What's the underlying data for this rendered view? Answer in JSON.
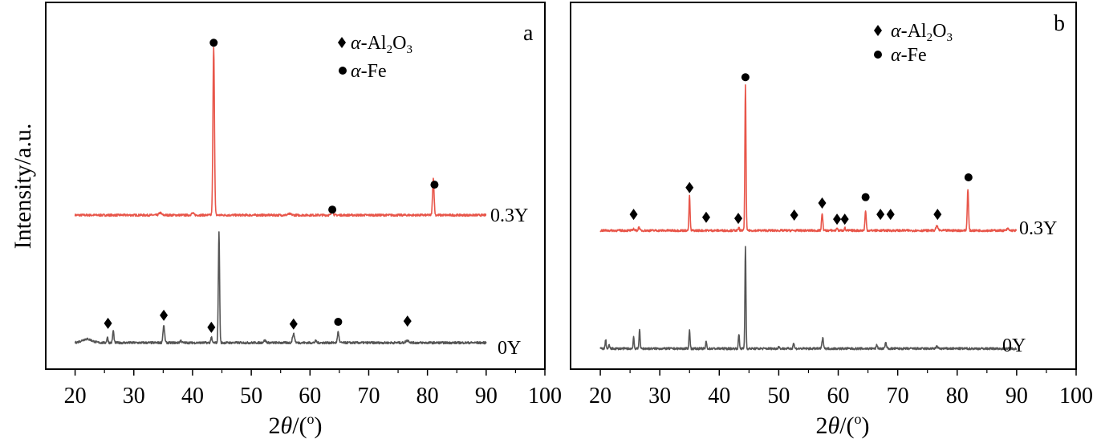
{
  "chart_data": [
    {
      "type": "line",
      "panel_label": "a",
      "xlabel": {
        "pre": "2",
        "theta": "θ",
        "mid": "/(",
        "sup": "o",
        "post": ")"
      },
      "ylabel": "Intensity/a.u.",
      "xlim": [
        15,
        100
      ],
      "ylim": [
        0,
        100
      ],
      "xticks": [
        20,
        30,
        40,
        50,
        60,
        70,
        80,
        90,
        100
      ],
      "grid": false,
      "legend": {
        "placement": "top-center",
        "al2o3": {
          "greek": "α",
          "a": "-Al",
          "s1": "2",
          "b": "O",
          "s2": "3"
        },
        "fe": {
          "greek": "α",
          "a": "-Fe"
        }
      },
      "series": [
        {
          "name": "0.3Y",
          "color": "#e8564a",
          "baseline": 42,
          "peaks": [
            [
              43.6,
              46,
              0.18
            ],
            [
              63.8,
              1.4,
              0.2
            ],
            [
              81.0,
              10,
              0.18
            ],
            [
              34.5,
              0.6,
              0.3
            ],
            [
              40.0,
              0.5,
              0.3
            ],
            [
              56.5,
              0.3,
              0.4
            ]
          ],
          "markers": [
            {
              "type": "circle",
              "x": 43.6,
              "y": 89
            },
            {
              "type": "circle",
              "x": 63.8,
              "y": 43.5
            },
            {
              "type": "circle",
              "x": 81.2,
              "y": 50.3
            }
          ]
        },
        {
          "name": "0Y",
          "color": "#555555",
          "baseline": 7.2,
          "peaks": [
            [
              44.5,
              30,
              0.15
            ],
            [
              22.0,
              1.0,
              1.2
            ],
            [
              25.5,
              1.5,
              0.15
            ],
            [
              26.5,
              3.3,
              0.15
            ],
            [
              35.1,
              4.6,
              0.2
            ],
            [
              38.0,
              0.6,
              0.2
            ],
            [
              43.2,
              1.5,
              0.15
            ],
            [
              52.3,
              0.6,
              0.3
            ],
            [
              57.2,
              2.4,
              0.25
            ],
            [
              64.8,
              3.0,
              0.18
            ],
            [
              61.0,
              0.5,
              0.2
            ],
            [
              76.6,
              0.6,
              0.4
            ]
          ],
          "markers": [
            {
              "type": "diamond",
              "x": 25.6,
              "y": 12.5
            },
            {
              "type": "diamond",
              "x": 35.1,
              "y": 14.7
            },
            {
              "type": "diamond",
              "x": 43.2,
              "y": 11.4
            },
            {
              "type": "diamond",
              "x": 57.2,
              "y": 12.3
            },
            {
              "type": "circle",
              "x": 64.8,
              "y": 12.9
            },
            {
              "type": "diamond",
              "x": 76.6,
              "y": 13.1
            }
          ]
        }
      ]
    },
    {
      "type": "line",
      "panel_label": "b",
      "xlabel": {
        "pre": "2",
        "theta": "θ",
        "mid": "/(",
        "sup": "o",
        "post": ")"
      },
      "xlim": [
        15,
        100
      ],
      "ylim": [
        0,
        100
      ],
      "xticks": [
        20,
        30,
        40,
        50,
        60,
        70,
        80,
        90,
        100
      ],
      "grid": false,
      "legend": {
        "placement": "top-right",
        "al2o3": {
          "greek": "α",
          "a": "-Al",
          "s1": "2",
          "b": "O",
          "s2": "3"
        },
        "fe": {
          "greek": "α",
          "a": "-Fe"
        }
      },
      "series": [
        {
          "name": "0.3Y",
          "color": "#e8564a",
          "baseline": 37.8,
          "peaks": [
            [
              44.4,
              40,
              0.13
            ],
            [
              35.0,
              9.5,
              0.13
            ],
            [
              57.3,
              4.8,
              0.15
            ],
            [
              64.6,
              5.3,
              0.15
            ],
            [
              81.8,
              11.4,
              0.15
            ],
            [
              26.5,
              1.0,
              0.15
            ],
            [
              25.6,
              0.5,
              0.15
            ],
            [
              43.3,
              0.8,
              0.12
            ],
            [
              59.8,
              0.8,
              0.12
            ],
            [
              61.1,
              0.8,
              0.12
            ],
            [
              76.6,
              1.2,
              0.25
            ],
            [
              88.5,
              0.5,
              0.2
            ]
          ],
          "markers": [
            {
              "type": "diamond",
              "x": 25.6,
              "y": 42.2
            },
            {
              "type": "diamond",
              "x": 35.0,
              "y": 49.5
            },
            {
              "type": "diamond",
              "x": 37.8,
              "y": 41.4
            },
            {
              "type": "diamond",
              "x": 43.2,
              "y": 41.1
            },
            {
              "type": "circle",
              "x": 44.4,
              "y": 79.6
            },
            {
              "type": "diamond",
              "x": 52.6,
              "y": 42.0
            },
            {
              "type": "diamond",
              "x": 57.3,
              "y": 45.3
            },
            {
              "type": "diamond",
              "x": 59.8,
              "y": 40.9
            },
            {
              "type": "diamond",
              "x": 61.1,
              "y": 40.9
            },
            {
              "type": "circle",
              "x": 64.6,
              "y": 46.9
            },
            {
              "type": "diamond",
              "x": 67.1,
              "y": 42.2
            },
            {
              "type": "diamond",
              "x": 68.8,
              "y": 42.2
            },
            {
              "type": "diamond",
              "x": 76.7,
              "y": 42.2
            },
            {
              "type": "circle",
              "x": 81.9,
              "y": 52.3
            }
          ]
        },
        {
          "name": "0Y",
          "color": "#555555",
          "baseline": 5.6,
          "peaks": [
            [
              44.4,
              28,
              0.12
            ],
            [
              20.9,
              2.5,
              0.12
            ],
            [
              21.5,
              1.0,
              0.12
            ],
            [
              25.6,
              3.2,
              0.12
            ],
            [
              26.6,
              5.5,
              0.12
            ],
            [
              35.0,
              5.0,
              0.13
            ],
            [
              37.8,
              2.0,
              0.12
            ],
            [
              43.3,
              3.9,
              0.13
            ],
            [
              50.0,
              0.5,
              0.15
            ],
            [
              52.5,
              1.5,
              0.15
            ],
            [
              57.4,
              2.8,
              0.18
            ],
            [
              66.5,
              1.0,
              0.15
            ],
            [
              68.0,
              1.5,
              0.18
            ],
            [
              76.6,
              0.5,
              0.25
            ]
          ],
          "markers": []
        }
      ]
    }
  ]
}
